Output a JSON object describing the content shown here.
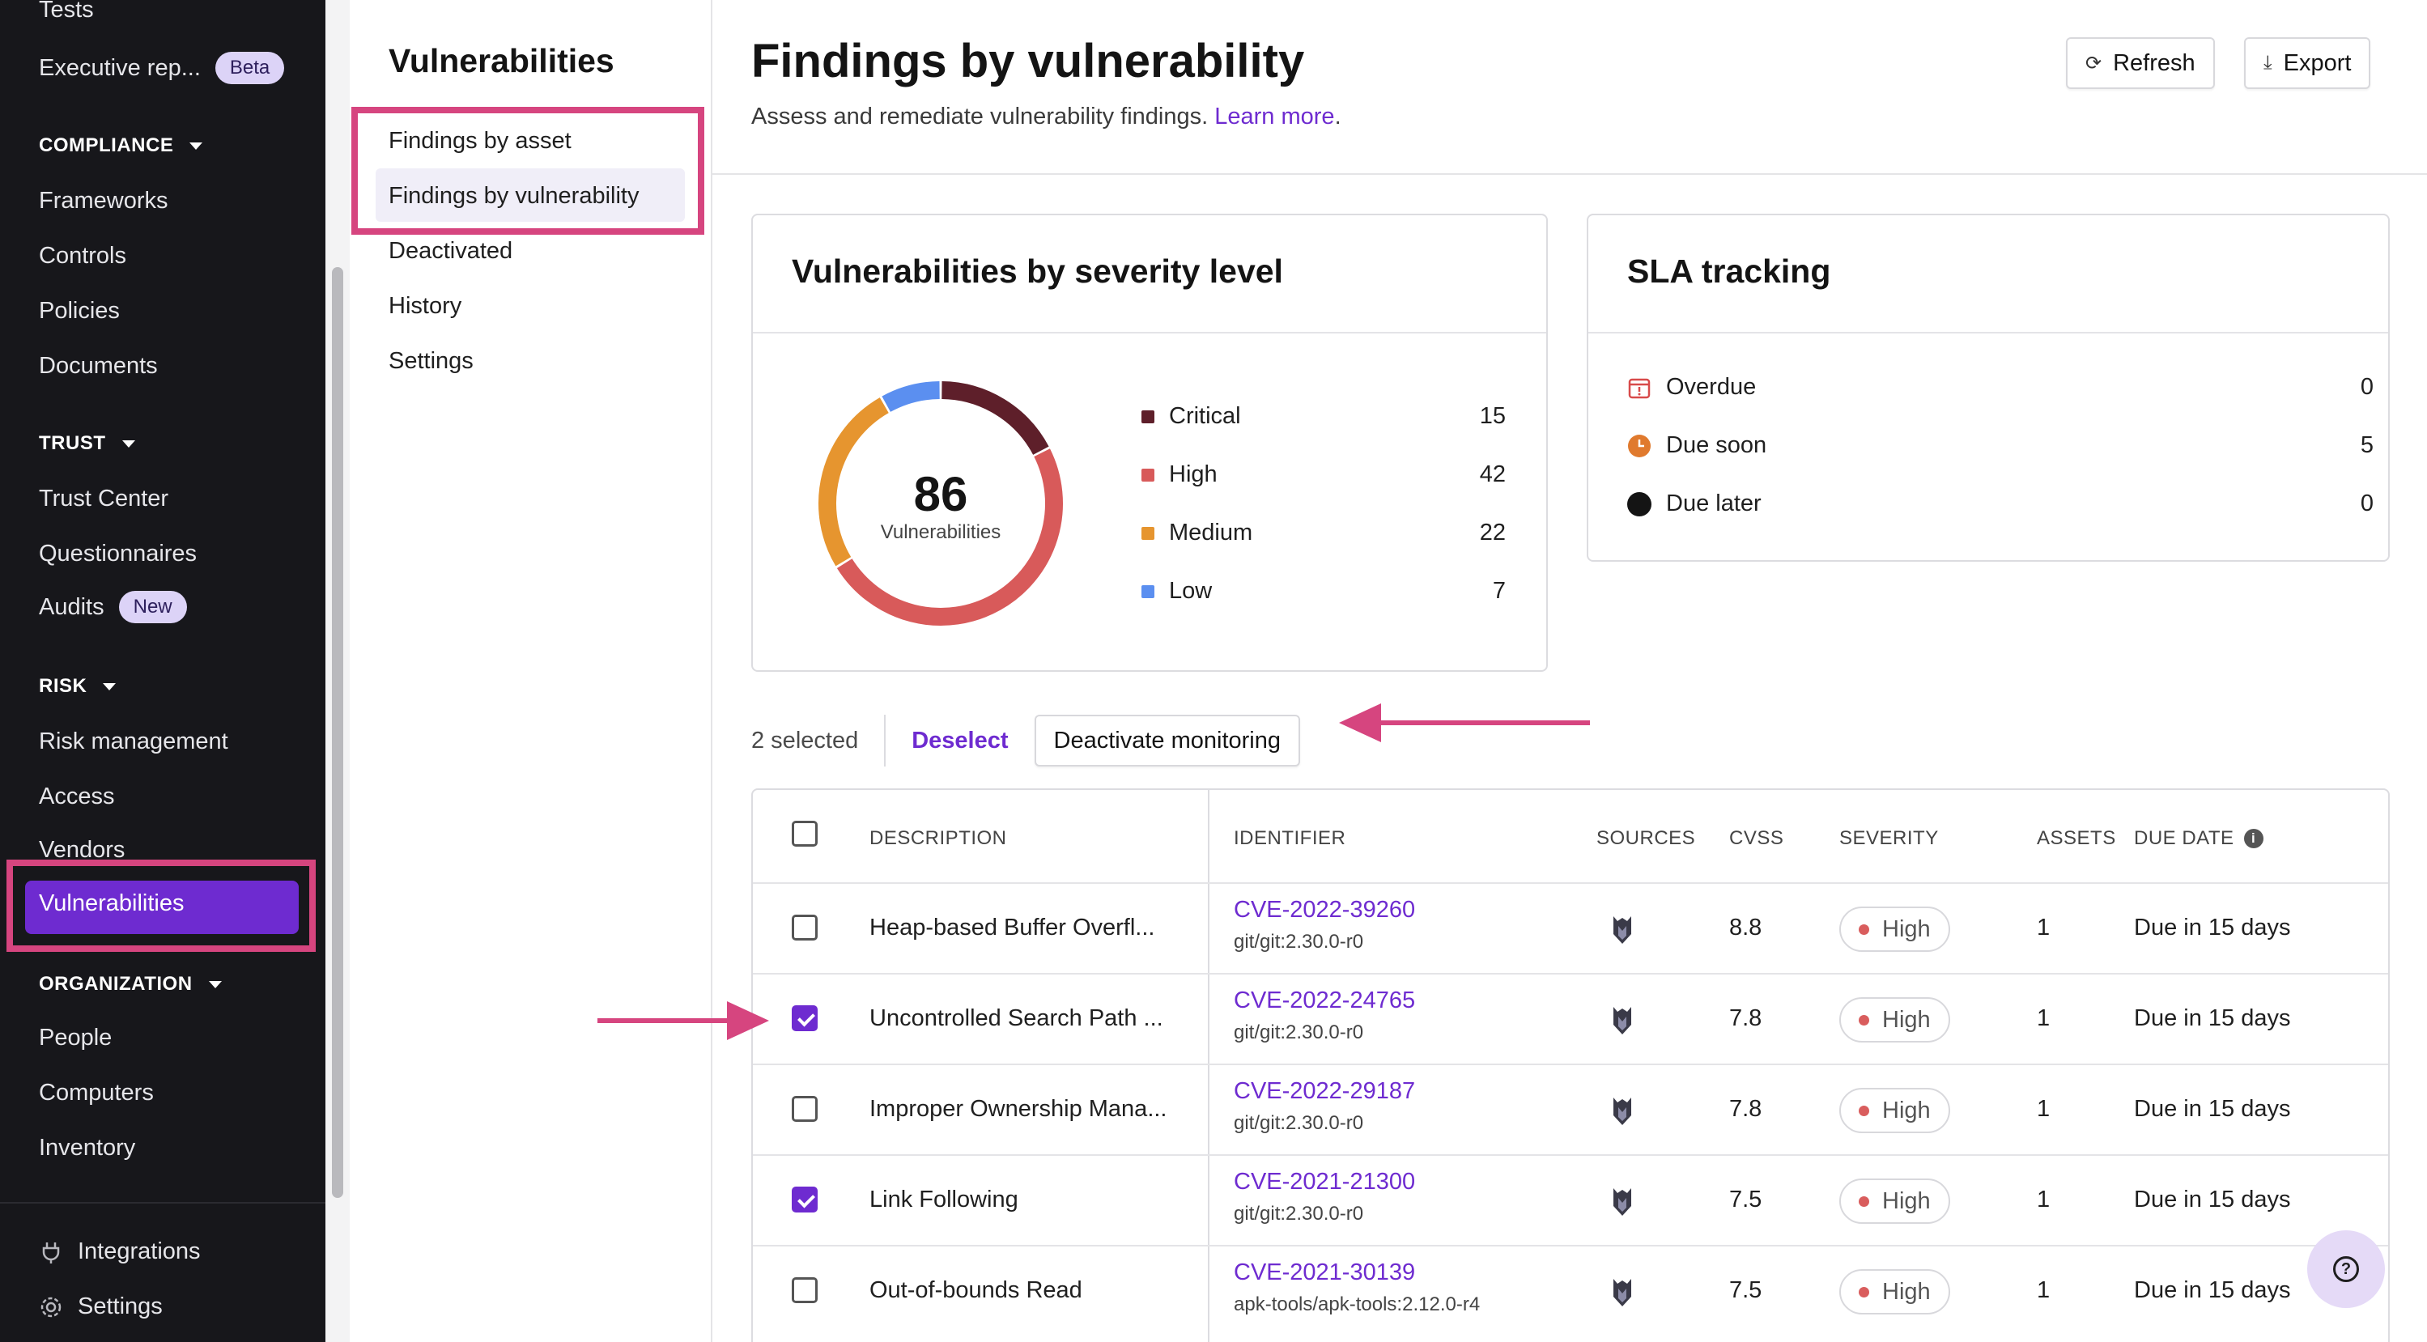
{
  "nav": {
    "items_top": [
      {
        "label": "Tests"
      },
      {
        "label": "Executive rep...",
        "badge": "Beta"
      }
    ],
    "compliance": {
      "title": "COMPLIANCE",
      "items": [
        "Frameworks",
        "Controls",
        "Policies",
        "Documents"
      ]
    },
    "trust": {
      "title": "TRUST",
      "items": [
        "Trust Center",
        "Questionnaires"
      ],
      "audits": {
        "label": "Audits",
        "badge": "New"
      }
    },
    "risk": {
      "title": "RISK",
      "items": [
        "Risk management",
        "Access",
        "Vendors"
      ],
      "active": "Vulnerabilities"
    },
    "organization": {
      "title": "ORGANIZATION",
      "items": [
        "People",
        "Computers",
        "Inventory"
      ]
    },
    "bottom": [
      {
        "label": "Integrations",
        "icon": "plug-icon"
      },
      {
        "label": "Settings",
        "icon": "gear-icon"
      }
    ]
  },
  "subnav": {
    "title": "Vulnerabilities",
    "items": [
      "Findings by asset",
      "Findings by vulnerability",
      "Deactivated",
      "History",
      "Settings"
    ]
  },
  "header": {
    "title": "Findings by vulnerability",
    "subtitle": "Assess and remediate vulnerability findings.",
    "learn_more": "Learn more",
    "refresh": "Refresh",
    "export": "Export"
  },
  "severity_card": {
    "title": "Vulnerabilities by severity level",
    "total": "86",
    "total_label": "Vulnerabilities"
  },
  "chart_data": {
    "type": "pie",
    "categories": [
      "Critical",
      "High",
      "Medium",
      "Low"
    ],
    "values": [
      15,
      42,
      22,
      7
    ],
    "colors": [
      "#5e1f2a",
      "#d85a5a",
      "#e6952f",
      "#5b8ff0"
    ]
  },
  "sla": {
    "title": "SLA tracking",
    "rows": [
      {
        "label": "Overdue",
        "value": "0",
        "icon": "calendar-alert-icon",
        "color": "#d84b4b"
      },
      {
        "label": "Due soon",
        "value": "5",
        "icon": "clock-icon",
        "color": "#e07a2e"
      },
      {
        "label": "Due later",
        "value": "0",
        "icon": "circle-icon",
        "color": "#141414"
      }
    ]
  },
  "selection": {
    "count": "2 selected",
    "deselect": "Deselect",
    "deactivate": "Deactivate monitoring"
  },
  "table": {
    "headers": [
      "DESCRIPTION",
      "IDENTIFIER",
      "SOURCES",
      "CVSS",
      "SEVERITY",
      "ASSETS",
      "DUE DATE"
    ],
    "rows": [
      {
        "checked": false,
        "description": "Heap-based Buffer Overfl...",
        "cve": "CVE-2022-39260",
        "pkg": "git/git:2.30.0-r0",
        "cvss": "8.8",
        "severity": "High",
        "assets": "1",
        "due": "Due in 15 days"
      },
      {
        "checked": true,
        "description": "Uncontrolled Search Path ...",
        "cve": "CVE-2022-24765",
        "pkg": "git/git:2.30.0-r0",
        "cvss": "7.8",
        "severity": "High",
        "assets": "1",
        "due": "Due in 15 days"
      },
      {
        "checked": false,
        "description": "Improper Ownership Mana...",
        "cve": "CVE-2022-29187",
        "pkg": "git/git:2.30.0-r0",
        "cvss": "7.8",
        "severity": "High",
        "assets": "1",
        "due": "Due in 15 days"
      },
      {
        "checked": true,
        "description": "Link Following",
        "cve": "CVE-2021-21300",
        "pkg": "git/git:2.30.0-r0",
        "cvss": "7.5",
        "severity": "High",
        "assets": "1",
        "due": "Due in 15 days"
      },
      {
        "checked": false,
        "description": "Out-of-bounds Read",
        "cve": "CVE-2021-30139",
        "pkg": "apk-tools/apk-tools:2.12.0-r4",
        "cvss": "7.5",
        "severity": "High",
        "assets": "1",
        "due": "Due in 15 days"
      }
    ]
  },
  "help_icon": "question-icon"
}
